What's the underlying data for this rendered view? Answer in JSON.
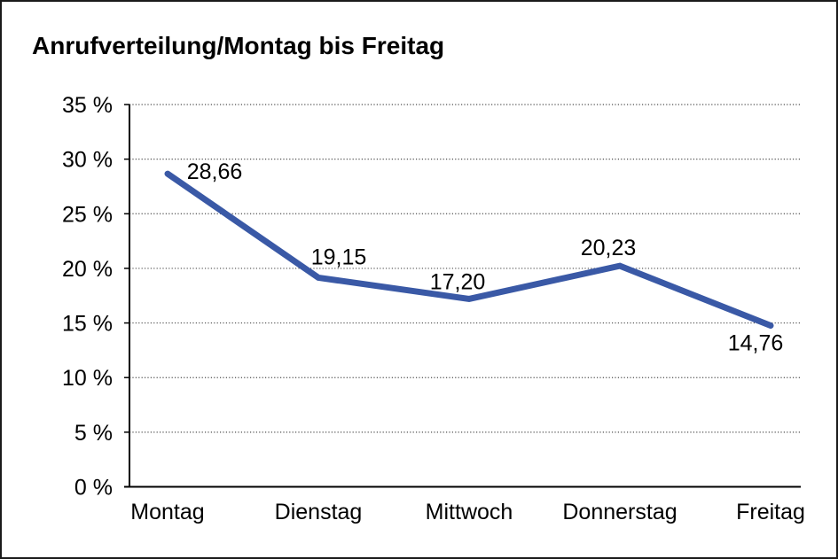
{
  "frame": {
    "background": "#ffffff",
    "border_color": "#1a1a1a"
  },
  "chart_data": {
    "type": "line",
    "title": "Anrufverteilung/Montag bis Freitag",
    "categories": [
      "Montag",
      "Dienstag",
      "Mittwoch",
      "Donnerstag",
      "Freitag"
    ],
    "values": [
      28.66,
      19.15,
      17.2,
      20.23,
      14.76
    ],
    "point_labels": [
      "28,66",
      "19,15",
      "17,20",
      "20,23",
      "14,76"
    ],
    "xlabel": "",
    "ylabel": "",
    "ylim": [
      0,
      35
    ],
    "ytick_step": 5,
    "ytick_labels": [
      "0 %",
      "5 %",
      "10 %",
      "15 %",
      "20 %",
      "25 %",
      "30 %",
      "35 %"
    ],
    "grid": "horizontal-dotted",
    "legend": "none",
    "line_color": "#3A59A6",
    "gridline_color": "#4d4d4d",
    "axis_color": "#000000",
    "text_color": "#000000"
  }
}
